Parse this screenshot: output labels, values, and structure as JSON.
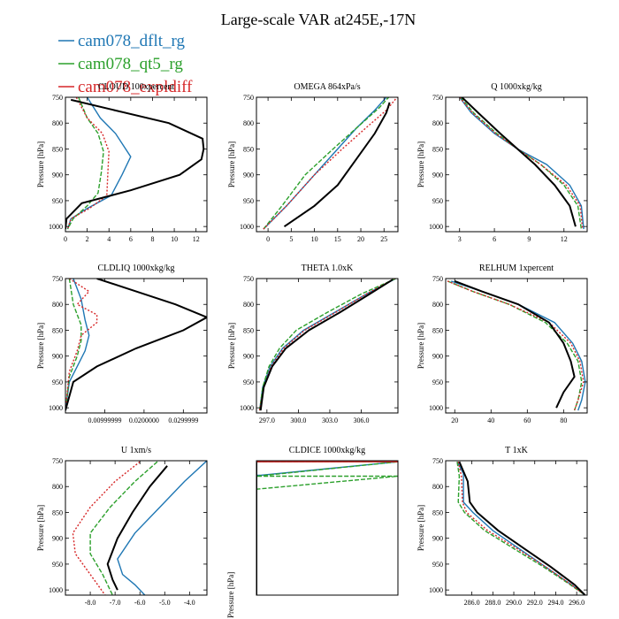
{
  "figure_title": "Large-scale VAR at245E,-17N",
  "legend": [
    {
      "name": "cam078_dflt_rg",
      "color": "#1f77b4",
      "dash": ""
    },
    {
      "name": "cam078_qt5_rg",
      "color": "#2ca02c",
      "dash": "5,2"
    },
    {
      "name": "cam078_expldiff",
      "color": "#d62728",
      "dash": "2,2"
    }
  ],
  "unlabeled_series_color": "#000000",
  "ylabel": "Pressure [hPa]",
  "chart_data": [
    {
      "type": "line",
      "title": "CLOUD 100xpercent",
      "xlim": [
        0,
        13
      ],
      "xticks": [
        0,
        2,
        4,
        6,
        8,
        10,
        12
      ],
      "xticklabels": [
        "0",
        "2",
        "4",
        "6",
        "8",
        "10",
        "12"
      ],
      "ylim": [
        750,
        1010
      ],
      "yticks": [
        750,
        800,
        850,
        900,
        950,
        1000
      ],
      "yticklabels": [
        "750",
        "800",
        "850",
        "900",
        "950",
        "1000"
      ],
      "ylabel": "Pressure [hPa]",
      "series": [
        {
          "color": "#1f77b4",
          "x": [
            2.0,
            3.2,
            4.6,
            6.0,
            5.2,
            4.2,
            2.0,
            0.5,
            0.2
          ],
          "y": [
            750,
            790,
            820,
            865,
            900,
            940,
            965,
            985,
            1005
          ]
        },
        {
          "color": "#2ca02c",
          "x": [
            1.2,
            2.0,
            3.0,
            3.5,
            3.3,
            3.0,
            2.0,
            0.7,
            0.2
          ],
          "y": [
            750,
            790,
            820,
            855,
            895,
            935,
            960,
            985,
            1005
          ]
        },
        {
          "color": "#d62728",
          "x": [
            1.0,
            2.0,
            3.4,
            4.0,
            3.9,
            3.8,
            2.2,
            0.5,
            0.2
          ],
          "y": [
            750,
            790,
            820,
            855,
            895,
            940,
            965,
            985,
            1005
          ]
        },
        {
          "color": "#000000",
          "x": [
            0.5,
            4.5,
            9.5,
            12.6,
            12.7,
            12.5,
            10.5,
            6.0,
            1.5,
            0.1,
            0.0
          ],
          "y": [
            755,
            775,
            800,
            830,
            850,
            870,
            900,
            930,
            955,
            985,
            1005
          ]
        }
      ]
    },
    {
      "type": "line",
      "title": "OMEGA 864xPa/s",
      "xlim": [
        -2.5,
        28
      ],
      "xticks": [
        0,
        5,
        10,
        15,
        20,
        25
      ],
      "xticklabels": [
        "0",
        "5",
        "10",
        "15",
        "20",
        "25"
      ],
      "ylim": [
        750,
        1010
      ],
      "yticks": [
        750,
        800,
        850,
        900,
        950,
        1000
      ],
      "yticklabels": [
        "750",
        "800",
        "850",
        "900",
        "950",
        "1000"
      ],
      "ylabel": "Pressure [hPa]",
      "series": [
        {
          "color": "#1f77b4",
          "x": [
            -1,
            4,
            10,
            15,
            19,
            23,
            25.5
          ],
          "y": [
            1005,
            960,
            900,
            850,
            810,
            775,
            750
          ]
        },
        {
          "color": "#2ca02c",
          "x": [
            -1,
            3,
            8,
            14,
            19,
            24,
            26
          ],
          "y": [
            1005,
            960,
            900,
            850,
            810,
            770,
            750
          ]
        },
        {
          "color": "#d62728",
          "x": [
            -1,
            4,
            10,
            16,
            21,
            25.5,
            27.8
          ],
          "y": [
            1005,
            960,
            900,
            850,
            810,
            775,
            750
          ]
        },
        {
          "color": "#000000",
          "x": [
            3.5,
            10,
            15,
            19,
            23,
            25.5,
            26.2
          ],
          "y": [
            1000,
            960,
            920,
            870,
            820,
            780,
            760
          ]
        }
      ]
    },
    {
      "type": "line",
      "title": "Q 1000xkg/kg",
      "xlim": [
        1.8,
        14
      ],
      "xticks": [
        3,
        6,
        9,
        12
      ],
      "xticklabels": [
        "3",
        "6",
        "9",
        "12"
      ],
      "ylim": [
        750,
        1010
      ],
      "yticks": [
        750,
        800,
        850,
        900,
        950,
        1000
      ],
      "yticklabels": [
        "750",
        "800",
        "850",
        "900",
        "950",
        "1000"
      ],
      "ylabel": "Pressure [hPa]",
      "series": [
        {
          "color": "#1f77b4",
          "x": [
            3.0,
            4.0,
            6.0,
            8.0,
            10.5,
            12.5,
            13.5,
            13.7
          ],
          "y": [
            750,
            780,
            820,
            850,
            880,
            920,
            960,
            1005
          ]
        },
        {
          "color": "#2ca02c",
          "x": [
            3.1,
            4.2,
            6.2,
            8.0,
            10.0,
            12.0,
            13.2,
            13.5
          ],
          "y": [
            750,
            780,
            820,
            850,
            880,
            920,
            960,
            1005
          ]
        },
        {
          "color": "#d62728",
          "x": [
            3.0,
            4.1,
            6.1,
            8.0,
            10.0,
            12.2,
            13.4,
            13.6
          ],
          "y": [
            750,
            780,
            820,
            850,
            880,
            920,
            960,
            1005
          ]
        },
        {
          "color": "#000000",
          "x": [
            3.2,
            4.6,
            6.5,
            8.0,
            9.5,
            11.2,
            12.5,
            13.0
          ],
          "y": [
            750,
            780,
            820,
            850,
            880,
            920,
            960,
            1000
          ]
        }
      ]
    },
    {
      "type": "line",
      "title": "CLDLIQ 1000xkg/kg",
      "xlim": [
        0,
        0.036
      ],
      "xticks": [
        0.01,
        0.02,
        0.03
      ],
      "xticklabels": [
        "0.00999999",
        "0.0200000",
        "0.0299999"
      ],
      "ylim": [
        750,
        1010
      ],
      "yticks": [
        750,
        800,
        850,
        900,
        950,
        1000
      ],
      "yticklabels": [
        "750",
        "800",
        "850",
        "900",
        "950",
        "1000"
      ],
      "ylabel": "Pressure [hPa]",
      "series": [
        {
          "color": "#1f77b4",
          "x": [
            0.002,
            0.004,
            0.005,
            0.006,
            0.005,
            0.003,
            0.001,
            0.0
          ],
          "y": [
            750,
            790,
            830,
            860,
            890,
            920,
            950,
            1005
          ]
        },
        {
          "color": "#2ca02c",
          "x": [
            0.001,
            0.002,
            0.004,
            0.004,
            0.003,
            0.001,
            0.0
          ],
          "y": [
            750,
            800,
            840,
            870,
            900,
            940,
            1005
          ]
        },
        {
          "color": "#d62728",
          "x": [
            0.001,
            0.006,
            0.003,
            0.008,
            0.008,
            0.004,
            0.003,
            0.001,
            0.0
          ],
          "y": [
            750,
            775,
            800,
            820,
            835,
            860,
            890,
            930,
            1005
          ]
        },
        {
          "color": "#000000",
          "x": [
            0.008,
            0.018,
            0.028,
            0.036,
            0.03,
            0.018,
            0.008,
            0.002,
            0.0
          ],
          "y": [
            750,
            775,
            800,
            825,
            850,
            885,
            920,
            950,
            1005
          ]
        }
      ]
    },
    {
      "type": "line",
      "title": "THETA 1.0xK",
      "xlim": [
        296,
        309.5
      ],
      "xticks": [
        297,
        300,
        303,
        306
      ],
      "xticklabels": [
        "297.0",
        "300.0",
        "303.0",
        "306.0"
      ],
      "ylim": [
        750,
        1010
      ],
      "yticks": [
        750,
        800,
        850,
        900,
        950,
        1000
      ],
      "yticklabels": [
        "750",
        "800",
        "850",
        "900",
        "950",
        "1000"
      ],
      "ylabel": "Pressure [hPa]",
      "series": [
        {
          "color": "#1f77b4",
          "x": [
            296.3,
            296.6,
            297.3,
            298.5,
            300.5,
            303.5,
            306.5,
            309.3
          ],
          "y": [
            1005,
            960,
            920,
            885,
            850,
            815,
            780,
            750
          ]
        },
        {
          "color": "#2ca02c",
          "x": [
            296.3,
            296.6,
            297.2,
            298.2,
            299.8,
            302.8,
            306.0,
            309.3
          ],
          "y": [
            1005,
            960,
            920,
            885,
            850,
            815,
            780,
            750
          ]
        },
        {
          "color": "#d62728",
          "x": [
            296.3,
            296.7,
            297.4,
            298.6,
            300.6,
            303.6,
            306.5,
            309.2
          ],
          "y": [
            1005,
            960,
            920,
            885,
            850,
            815,
            780,
            750
          ]
        },
        {
          "color": "#000000",
          "x": [
            296.4,
            296.7,
            297.5,
            298.8,
            301.0,
            304.0,
            306.8,
            309.0
          ],
          "y": [
            1005,
            960,
            920,
            885,
            850,
            815,
            780,
            752
          ]
        }
      ]
    },
    {
      "type": "line",
      "title": "RELHUM 1xpercent",
      "xlim": [
        15,
        93
      ],
      "xticks": [
        20,
        40,
        60,
        80
      ],
      "xticklabels": [
        "20",
        "40",
        "60",
        "80"
      ],
      "ylim": [
        750,
        1010
      ],
      "yticks": [
        750,
        800,
        850,
        900,
        950,
        1000
      ],
      "yticklabels": [
        "750",
        "800",
        "850",
        "900",
        "950",
        "1000"
      ],
      "ylabel": "Pressure [hPa]",
      "series": [
        {
          "color": "#1f77b4",
          "x": [
            18,
            35,
            55,
            75,
            85,
            90,
            92,
            90,
            88
          ],
          "y": [
            755,
            775,
            800,
            835,
            875,
            910,
            950,
            985,
            1005
          ]
        },
        {
          "color": "#2ca02c",
          "x": [
            16,
            30,
            50,
            70,
            82,
            88,
            90,
            88,
            86
          ],
          "y": [
            755,
            775,
            800,
            835,
            875,
            910,
            950,
            985,
            1005
          ]
        },
        {
          "color": "#d62728",
          "x": [
            16,
            30,
            50,
            72,
            84,
            89,
            91,
            88,
            86
          ],
          "y": [
            755,
            775,
            800,
            835,
            875,
            910,
            950,
            985,
            1005
          ]
        },
        {
          "color": "#000000",
          "x": [
            20,
            35,
            55,
            72,
            80,
            84,
            86,
            80,
            76
          ],
          "y": [
            755,
            775,
            800,
            835,
            875,
            910,
            940,
            970,
            1000
          ]
        }
      ]
    },
    {
      "type": "line",
      "title": "U 1xm/s",
      "xlim": [
        -9,
        -3.3
      ],
      "xticks": [
        -8,
        -7,
        -6,
        -5,
        -4
      ],
      "xticklabels": [
        "-8.0",
        "-7.0",
        "-6.0",
        "-5.0",
        "-4.0"
      ],
      "ylim": [
        750,
        1010
      ],
      "yticks": [
        750,
        800,
        850,
        900,
        950,
        1000
      ],
      "yticklabels": [
        "750",
        "800",
        "850",
        "900",
        "950",
        "1000"
      ],
      "ylabel": "Pressure [hPa]",
      "series": [
        {
          "color": "#1f77b4",
          "x": [
            -3.3,
            -4.2,
            -5.2,
            -6.2,
            -6.9,
            -6.7,
            -6.2,
            -5.8
          ],
          "y": [
            750,
            790,
            840,
            890,
            940,
            970,
            990,
            1010
          ]
        },
        {
          "color": "#2ca02c",
          "x": [
            -5.3,
            -6.2,
            -7.2,
            -8.0,
            -8.0,
            -7.5,
            -7.1
          ],
          "y": [
            752,
            790,
            840,
            890,
            930,
            970,
            1010
          ]
        },
        {
          "color": "#d62728",
          "x": [
            -6.0,
            -7.0,
            -8.0,
            -8.7,
            -8.6,
            -8.0,
            -7.4
          ],
          "y": [
            752,
            790,
            840,
            890,
            930,
            970,
            1010
          ]
        },
        {
          "color": "#000000",
          "x": [
            -4.9,
            -5.6,
            -6.3,
            -6.9,
            -7.3,
            -7.1,
            -6.9
          ],
          "y": [
            760,
            800,
            850,
            900,
            950,
            980,
            1000
          ]
        }
      ]
    },
    {
      "type": "line",
      "title": "CLDICE 1000xkg/kg",
      "xlim": [
        0,
        1
      ],
      "xticks": [],
      "xticklabels": [],
      "ylim": [
        750,
        1010
      ],
      "yticks": [],
      "yticklabels": [],
      "ylabel": "Pressure [hPa]",
      "series": [
        {
          "color": "#1f77b4",
          "x": [
            0.0,
            1.0,
            0.03,
            0.0,
            0.0
          ],
          "y": [
            752,
            752,
            778,
            778,
            1010
          ]
        },
        {
          "color": "#2ca02c",
          "x": [
            0.0,
            1.0,
            0.0,
            1.0,
            0.0,
            0.0
          ],
          "y": [
            752,
            752,
            780,
            780,
            805,
            1010
          ]
        },
        {
          "color": "#d62728",
          "x": [
            0.0,
            1.0,
            0.0,
            0.0
          ],
          "y": [
            752,
            752,
            752,
            1010
          ]
        },
        {
          "color": "#000000",
          "x": [
            0.0,
            0.0
          ],
          "y": [
            752,
            1010
          ]
        }
      ]
    },
    {
      "type": "line",
      "title": "T 1xK",
      "xlim": [
        283.5,
        297
      ],
      "xticks": [
        286,
        288,
        290,
        292,
        294,
        296
      ],
      "xticklabels": [
        "286.0",
        "288.0",
        "290.0",
        "292.0",
        "294.0",
        "296.0"
      ],
      "ylim": [
        750,
        1010
      ],
      "yticks": [
        750,
        800,
        850,
        900,
        950,
        1000
      ],
      "yticklabels": [
        "750",
        "800",
        "850",
        "900",
        "950",
        "1000"
      ],
      "ylabel": "Pressure [hPa]",
      "series": [
        {
          "color": "#1f77b4",
          "x": [
            284.6,
            285.2,
            285.2,
            286.1,
            288.0,
            290.5,
            293.0,
            295.5,
            296.8
          ],
          "y": [
            752,
            775,
            830,
            850,
            885,
            920,
            955,
            990,
            1010
          ]
        },
        {
          "color": "#2ca02c",
          "x": [
            284.6,
            284.8,
            284.7,
            285.3,
            287.2,
            290.0,
            292.8,
            295.4,
            296.8
          ],
          "y": [
            752,
            780,
            830,
            850,
            885,
            920,
            955,
            990,
            1010
          ]
        },
        {
          "color": "#d62728",
          "x": [
            284.7,
            285.0,
            285.1,
            285.5,
            287.5,
            290.3,
            293.0,
            295.5,
            296.8
          ],
          "y": [
            752,
            780,
            830,
            850,
            885,
            920,
            955,
            990,
            1010
          ]
        },
        {
          "color": "#000000",
          "x": [
            284.8,
            285.6,
            285.8,
            286.5,
            288.5,
            291.0,
            293.5,
            295.8,
            296.8
          ],
          "y": [
            752,
            790,
            830,
            850,
            885,
            920,
            955,
            990,
            1010
          ]
        }
      ]
    }
  ]
}
